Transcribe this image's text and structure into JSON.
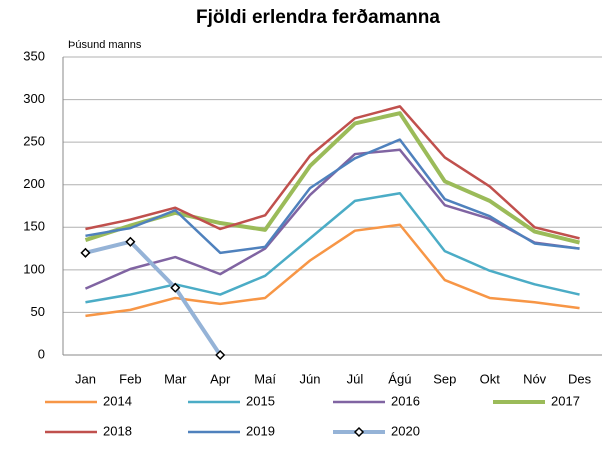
{
  "chart_data": {
    "type": "line",
    "title": "Fjöldi erlendra ferðamanna",
    "y_label": "Þúsund manns",
    "categories": [
      "Jan",
      "Feb",
      "Mar",
      "Apr",
      "Maí",
      "Jún",
      "Júl",
      "Ágú",
      "Sep",
      "Okt",
      "Nóv",
      "Des"
    ],
    "series": [
      {
        "name": "2014",
        "color": "#f79646",
        "line_width": 2.5,
        "values": [
          46,
          53,
          67,
          60,
          67,
          111,
          146,
          153,
          88,
          67,
          62,
          55
        ]
      },
      {
        "name": "2015",
        "color": "#4bacc6",
        "line_width": 2.5,
        "values": [
          62,
          71,
          83,
          71,
          93,
          137,
          181,
          190,
          122,
          99,
          83,
          71
        ]
      },
      {
        "name": "2016",
        "color": "#8064a2",
        "line_width": 2.5,
        "values": [
          78,
          101,
          115,
          95,
          125,
          188,
          236,
          241,
          176,
          160,
          132,
          125
        ]
      },
      {
        "name": "2017",
        "color": "#9bbb59",
        "line_width": 4,
        "values": [
          135,
          152,
          167,
          155,
          147,
          222,
          272,
          284,
          204,
          181,
          145,
          132
        ]
      },
      {
        "name": "2018",
        "color": "#c0504d",
        "line_width": 2.5,
        "values": [
          148,
          159,
          173,
          148,
          164,
          234,
          278,
          292,
          232,
          198,
          150,
          137
        ]
      },
      {
        "name": "2019",
        "color": "#4f81bd",
        "line_width": 2.5,
        "values": [
          140,
          149,
          170,
          120,
          127,
          196,
          231,
          253,
          183,
          163,
          131,
          125
        ]
      },
      {
        "name": "2020",
        "color": "#95b3d7",
        "line_width": 4,
        "marker": "diamond",
        "values": [
          120,
          133,
          79,
          0,
          null,
          null,
          null,
          null,
          null,
          null,
          null,
          null
        ]
      }
    ],
    "ylim": [
      0,
      350
    ],
    "yticks": [
      0,
      50,
      100,
      150,
      200,
      250,
      300,
      350
    ],
    "grid": true,
    "legend": "bottom"
  }
}
